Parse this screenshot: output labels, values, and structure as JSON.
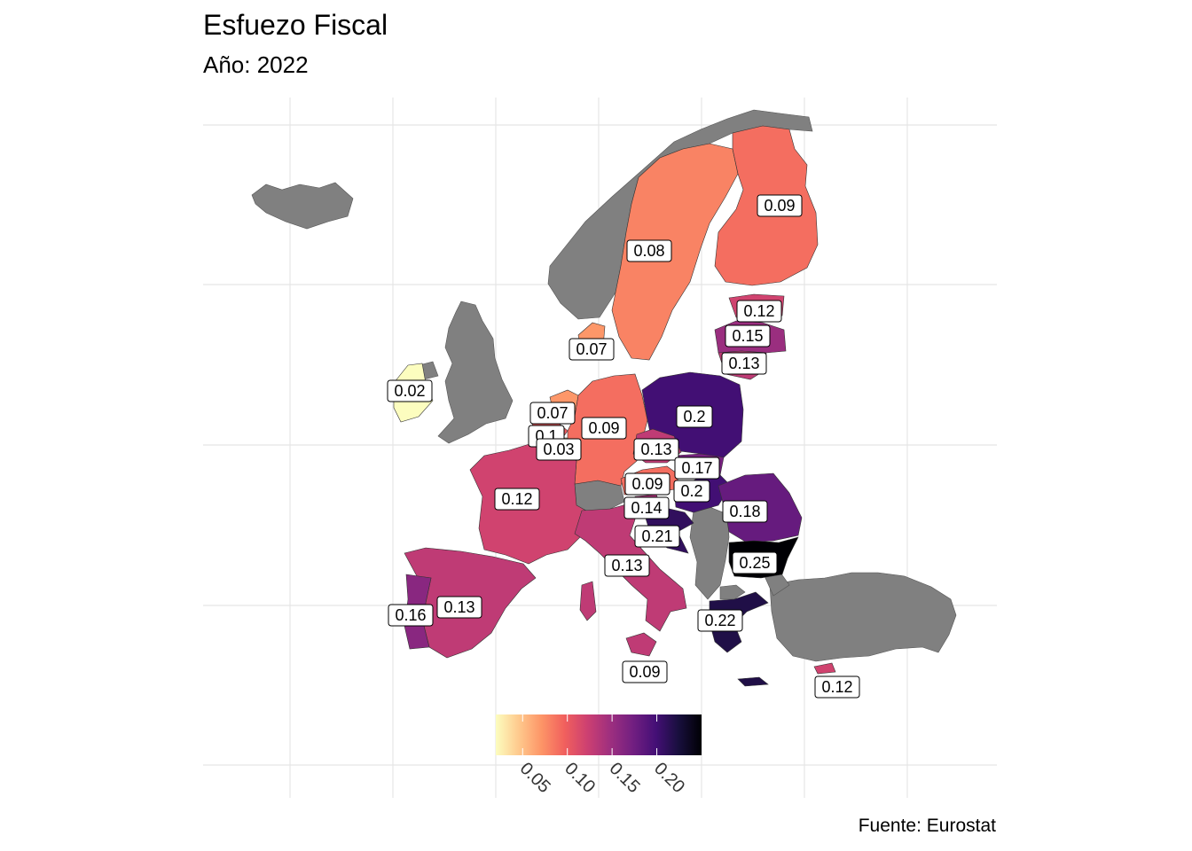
{
  "header": {
    "title": "Esfuezo Fiscal",
    "subtitle": "Año: 2022"
  },
  "caption": "Fuente: Eurostat",
  "legend": {
    "palette": "magma",
    "colors": [
      "#FCFDBF",
      "#FEC98D",
      "#FD9567",
      "#F1605D",
      "#CD4071",
      "#9E2F7F",
      "#721F81",
      "#440F76",
      "#180F3D",
      "#000004"
    ],
    "range": [
      0.02,
      0.25
    ],
    "ticks": [
      "0.05",
      "0.10",
      "0.15",
      "0.20"
    ],
    "tick_values": [
      0.05,
      0.1,
      0.15,
      0.2
    ]
  },
  "non_eu_color": "#808080",
  "map_data": {
    "type": "choropleth",
    "variable": "Esfuezo Fiscal",
    "year": "2022",
    "regions": [
      {
        "id": "IE",
        "value": 0.02,
        "label": "0.02"
      },
      {
        "id": "SE",
        "value": 0.08,
        "label": "0.08"
      },
      {
        "id": "FI",
        "value": 0.09,
        "label": "0.09"
      },
      {
        "id": "DK",
        "value": 0.07,
        "label": "0.07"
      },
      {
        "id": "EE",
        "value": 0.12,
        "label": "0.12"
      },
      {
        "id": "LV",
        "value": 0.15,
        "label": "0.15"
      },
      {
        "id": "LT",
        "value": 0.13,
        "label": "0.13"
      },
      {
        "id": "NL",
        "value": 0.07,
        "label": "0.07"
      },
      {
        "id": "BE",
        "value": 0.1,
        "label": "0.1"
      },
      {
        "id": "LU",
        "value": 0.03,
        "label": "0.03"
      },
      {
        "id": "DE",
        "value": 0.09,
        "label": "0.09"
      },
      {
        "id": "PL",
        "value": 0.2,
        "label": "0.2"
      },
      {
        "id": "CZ",
        "value": 0.13,
        "label": "0.13"
      },
      {
        "id": "SK",
        "value": 0.17,
        "label": "0.17"
      },
      {
        "id": "AT",
        "value": 0.09,
        "label": "0.09"
      },
      {
        "id": "HU",
        "value": 0.2,
        "label": "0.2"
      },
      {
        "id": "SI",
        "value": 0.14,
        "label": "0.14"
      },
      {
        "id": "HR",
        "value": 0.21,
        "label": "0.21"
      },
      {
        "id": "RO",
        "value": 0.18,
        "label": "0.18"
      },
      {
        "id": "BG",
        "value": 0.25,
        "label": "0.25"
      },
      {
        "id": "FR",
        "value": 0.12,
        "label": "0.12"
      },
      {
        "id": "IT",
        "value": 0.13,
        "label": "0.13"
      },
      {
        "id": "MT",
        "value": 0.09,
        "label": "0.09"
      },
      {
        "id": "ES",
        "value": 0.13,
        "label": "0.13"
      },
      {
        "id": "PT",
        "value": 0.16,
        "label": "0.16"
      },
      {
        "id": "GR",
        "value": 0.22,
        "label": "0.22"
      },
      {
        "id": "CY",
        "value": 0.12,
        "label": "0.12"
      }
    ]
  }
}
